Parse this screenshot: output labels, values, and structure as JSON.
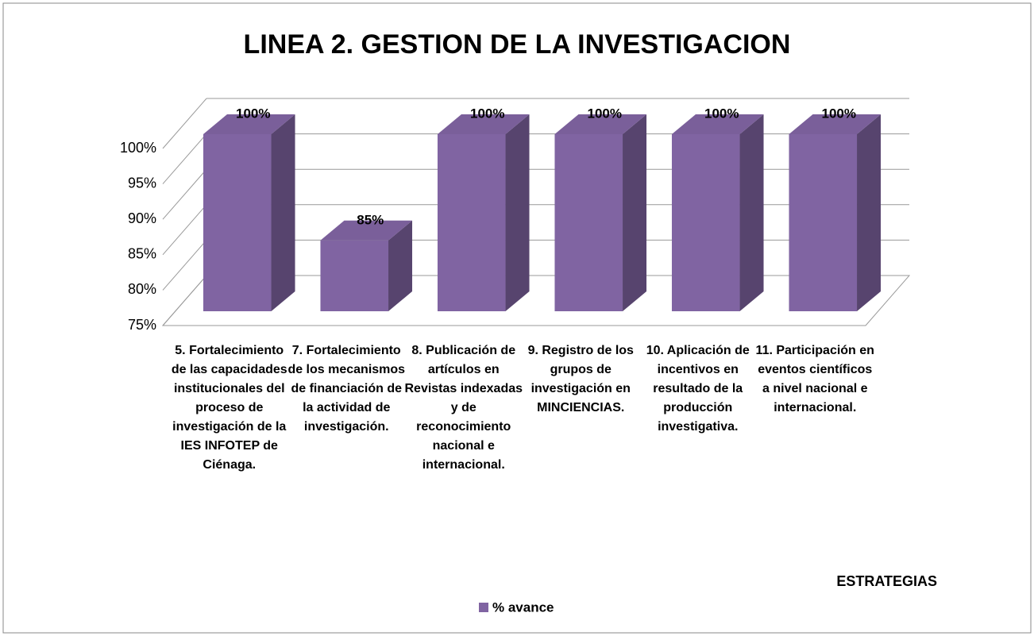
{
  "chart_data": {
    "type": "bar",
    "title": "LINEA 2.  GESTION DE LA INVESTIGACION",
    "xlabel": "ESTRATEGIAS",
    "categories": [
      "5. Fortalecimiento de las capacidades institucionales del proceso de investigación de la IES INFOTEP de Ciénaga.",
      "7. Fortalecimiento de los mecanismos de financiación de la actividad de investigación.",
      "8. Publicación de artículos en Revistas indexadas y de reconocimiento nacional e internacional.",
      "9. Registro de los grupos de investigación en MINCIENCIAS.",
      "10. Aplicación de incentivos en resultado de la producción investigativa.",
      "11. Participación en eventos científicos a nivel nacional e internacional."
    ],
    "series": [
      {
        "name": "% avance",
        "color": "#8064a2",
        "values": [
          100,
          85,
          100,
          100,
          100,
          100
        ],
        "value_labels": [
          "100%",
          "85%",
          "100%",
          "100%",
          "100%",
          "100%"
        ]
      }
    ],
    "ylim": [
      75,
      100
    ],
    "yticks": [
      {
        "value": 75,
        "label": "75%"
      },
      {
        "value": 80,
        "label": "80%"
      },
      {
        "value": 85,
        "label": "85%"
      },
      {
        "value": 90,
        "label": "90%"
      },
      {
        "value": 95,
        "label": "95%"
      },
      {
        "value": 100,
        "label": "100%"
      }
    ],
    "grid": true,
    "legend": "bottom"
  }
}
